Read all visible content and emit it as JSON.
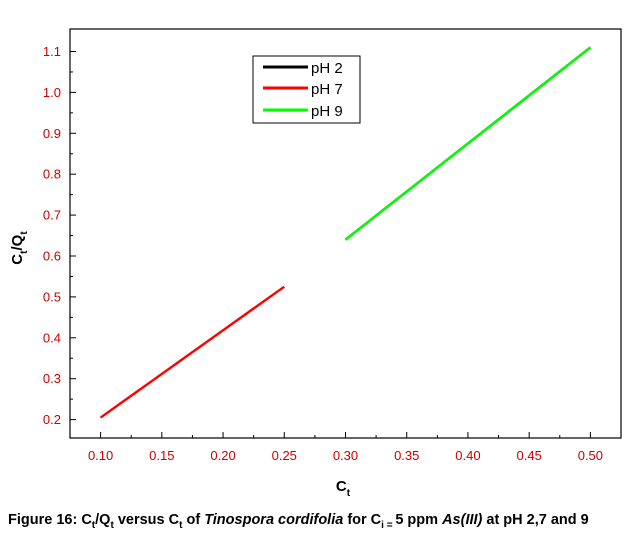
{
  "chart_data": {
    "type": "line",
    "xlabel": "C",
    "xlabel_sub": "t",
    "ylabel": "C",
    "ylabel_sub1": "t",
    "ylabel_mid": "/Q",
    "ylabel_sub2": "t",
    "xlim": [
      0.075,
      0.525
    ],
    "ylim": [
      0.155,
      1.155
    ],
    "x_ticks": [
      "0.10",
      "0.15",
      "0.20",
      "0.25",
      "0.30",
      "0.35",
      "0.40",
      "0.45",
      "0.50"
    ],
    "y_ticks": [
      "0.2",
      "0.3",
      "0.4",
      "0.5",
      "0.6",
      "0.7",
      "0.8",
      "0.9",
      "1.0",
      "1.1"
    ],
    "grid": false,
    "legend_position": "top-center",
    "series": [
      {
        "name": "pH 2",
        "color": "#000000",
        "x": [
          0.3,
          0.5
        ],
        "y": [
          0.64,
          1.11
        ]
      },
      {
        "name": "pH 7",
        "color": "#ff0000",
        "x": [
          0.1,
          0.25
        ],
        "y": [
          0.205,
          0.525
        ]
      },
      {
        "name": "pH 9",
        "color": "#00ff00",
        "x": [
          0.3,
          0.5
        ],
        "y": [
          0.64,
          1.11
        ]
      }
    ]
  },
  "caption": {
    "prefix": "Figure 16: C",
    "sub1": "t",
    "part2": "/Q",
    "sub2": "t",
    "part3": " versus C",
    "sub3": "t",
    "part4": " of ",
    "species": "Tinospora cordifolia",
    "part5": " for C",
    "sub4": "i = ",
    "part6": "5 ppm ",
    "analyte": "As(III)",
    "part7": " at pH 2,7 and 9"
  }
}
